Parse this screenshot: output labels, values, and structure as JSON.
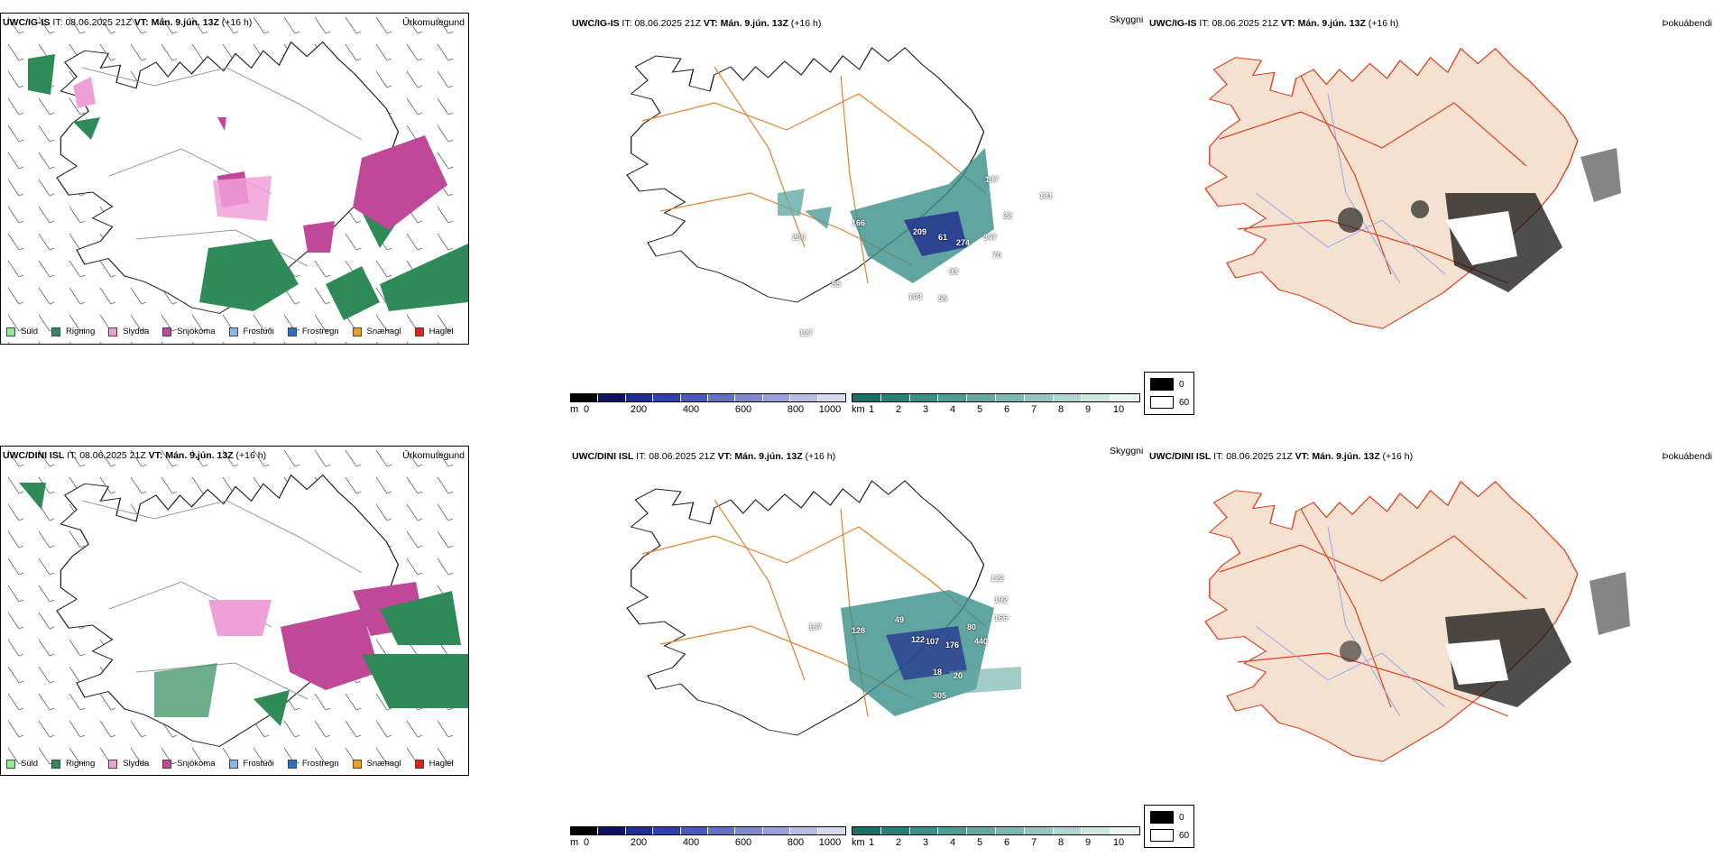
{
  "rows": [
    {
      "model": "UWC/IG-IS",
      "it_label": "IT:",
      "it_value": "08.06.2025 21Z",
      "vt_label": "VT:",
      "vt_value": "Mán. 9.jún. 13Z",
      "lead": "(+16 h)",
      "panel1_name": "Úrkomutegund",
      "panel2_name": "Skyggni",
      "panel3_name": "Þokuábendi",
      "visibility_labels": [
        "206",
        "166",
        "209",
        "61",
        "274",
        "347",
        "197",
        "93",
        "103",
        "55",
        "131",
        "70",
        "127",
        "55",
        "22"
      ]
    },
    {
      "model": "UWC/DINI ISL",
      "it_label": "IT:",
      "it_value": "08.06.2025 21Z",
      "vt_label": "VT:",
      "vt_value": "Mán. 9.jún. 13Z",
      "lead": "(+16 h)",
      "panel1_name": "Úrkomutegund",
      "panel2_name": "Skyggni",
      "panel3_name": "Þokuábendi",
      "visibility_labels": [
        "167",
        "128",
        "49",
        "122",
        "107",
        "176",
        "440",
        "80",
        "20",
        "18",
        "305",
        "192",
        "166",
        "122"
      ]
    }
  ],
  "precip_legend": [
    {
      "label": "Súld",
      "color": "#90ee90"
    },
    {
      "label": "Rigning",
      "color": "#2e8b57"
    },
    {
      "label": "Slydda",
      "color": "#f0a0d8"
    },
    {
      "label": "Snjókoma",
      "color": "#c04898"
    },
    {
      "label": "Frostúði",
      "color": "#87b8f0"
    },
    {
      "label": "Frostregn",
      "color": "#3070c0"
    },
    {
      "label": "Snæhagl",
      "color": "#f0a020"
    },
    {
      "label": "Haglél",
      "color": "#e02020"
    }
  ],
  "height_bar": {
    "unit": "m",
    "ticks": [
      "0",
      "200",
      "400",
      "600",
      "800",
      "1000"
    ],
    "colors": [
      "#000000",
      "#101060",
      "#202c90",
      "#3040a8",
      "#4a58b8",
      "#6470c0",
      "#8088cc",
      "#9ca0d8",
      "#b8bce4",
      "#d6d8f0"
    ]
  },
  "km_bar": {
    "unit": "km",
    "ticks": [
      "1",
      "2",
      "3",
      "4",
      "5",
      "6",
      "7",
      "8",
      "9",
      "10"
    ],
    "colors": [
      "#1a6e68",
      "#2a7e78",
      "#3a8e88",
      "#4e9c96",
      "#64aaa4",
      "#7cb8b2",
      "#96c6c2",
      "#b0d6d2",
      "#cce6e2",
      "#e8f4f2"
    ]
  },
  "fog_legend": {
    "high": "0",
    "low": "60"
  },
  "colors": {
    "rain": "#2e8b57",
    "snow": "#c04898",
    "sleet": "#f0a0d8",
    "drizzle": "#90ee90",
    "road": "#e8802a",
    "land_fog": "#f5e1d0",
    "river": "#8fa0ee",
    "road_red": "#e04020"
  }
}
